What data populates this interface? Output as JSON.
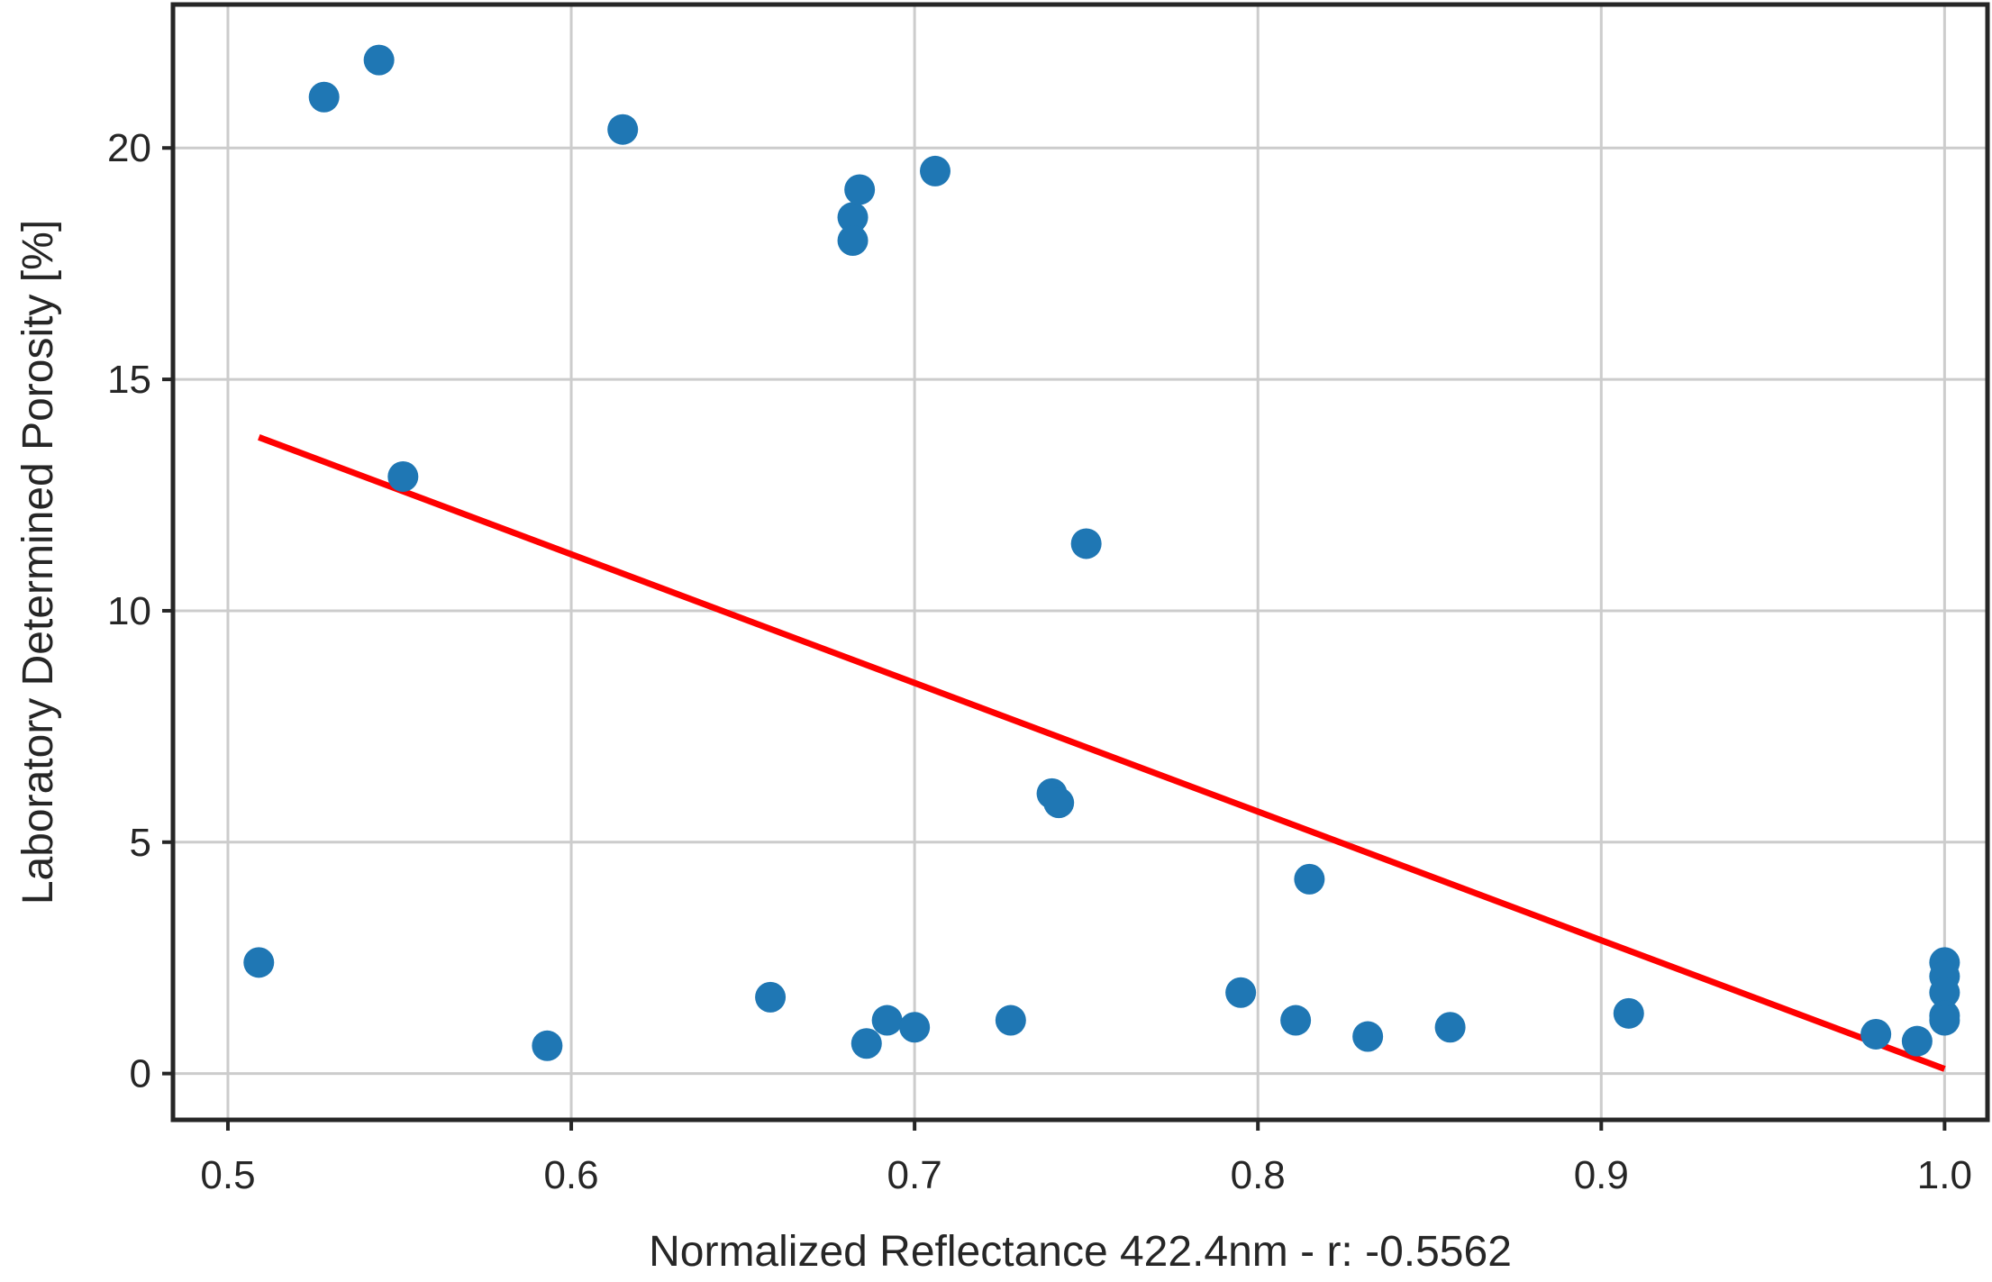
{
  "chart_data": {
    "type": "scatter",
    "title": "",
    "xlabel": "Normalized Reflectance 422.4nm - r:  -0.5562",
    "ylabel": "Laboratory Determined Porosity [%]",
    "xlim": [
      0.484,
      1.0125
    ],
    "ylim": [
      -1.0,
      23.1
    ],
    "xticks": [
      0.5,
      0.6,
      0.7,
      0.8,
      0.9,
      1.0
    ],
    "xtick_labels": [
      "0.5",
      "0.6",
      "0.7",
      "0.8",
      "0.9",
      "1.0"
    ],
    "yticks": [
      0,
      5,
      10,
      15,
      20
    ],
    "ytick_labels": [
      "0",
      "5",
      "10",
      "15",
      "20"
    ],
    "grid": true,
    "colors": {
      "points": "#1f77b4",
      "fit_line": "#ff0000",
      "grid": "#cccccc",
      "frame": "#262626"
    },
    "points": [
      {
        "x": 0.509,
        "y": 2.4
      },
      {
        "x": 0.528,
        "y": 21.1
      },
      {
        "x": 0.544,
        "y": 21.9
      },
      {
        "x": 0.551,
        "y": 12.9
      },
      {
        "x": 0.593,
        "y": 0.6
      },
      {
        "x": 0.615,
        "y": 20.4
      },
      {
        "x": 0.658,
        "y": 1.65
      },
      {
        "x": 0.682,
        "y": 18.5
      },
      {
        "x": 0.682,
        "y": 18.0
      },
      {
        "x": 0.684,
        "y": 19.1
      },
      {
        "x": 0.686,
        "y": 0.65
      },
      {
        "x": 0.692,
        "y": 1.15
      },
      {
        "x": 0.7,
        "y": 1.0
      },
      {
        "x": 0.706,
        "y": 19.5
      },
      {
        "x": 0.728,
        "y": 1.15
      },
      {
        "x": 0.74,
        "y": 6.05
      },
      {
        "x": 0.742,
        "y": 5.85
      },
      {
        "x": 0.75,
        "y": 11.45
      },
      {
        "x": 0.795,
        "y": 1.75
      },
      {
        "x": 0.811,
        "y": 1.15
      },
      {
        "x": 0.815,
        "y": 4.2
      },
      {
        "x": 0.832,
        "y": 0.8
      },
      {
        "x": 0.856,
        "y": 1.0
      },
      {
        "x": 0.908,
        "y": 1.3
      },
      {
        "x": 0.98,
        "y": 0.85
      },
      {
        "x": 0.992,
        "y": 0.7
      },
      {
        "x": 1.0,
        "y": 2.4
      },
      {
        "x": 1.0,
        "y": 2.1
      },
      {
        "x": 1.0,
        "y": 1.75
      },
      {
        "x": 1.0,
        "y": 1.25
      },
      {
        "x": 1.0,
        "y": 1.15
      }
    ],
    "fit_line": {
      "x": [
        0.509,
        1.0
      ],
      "y": [
        13.75,
        0.1
      ]
    }
  }
}
